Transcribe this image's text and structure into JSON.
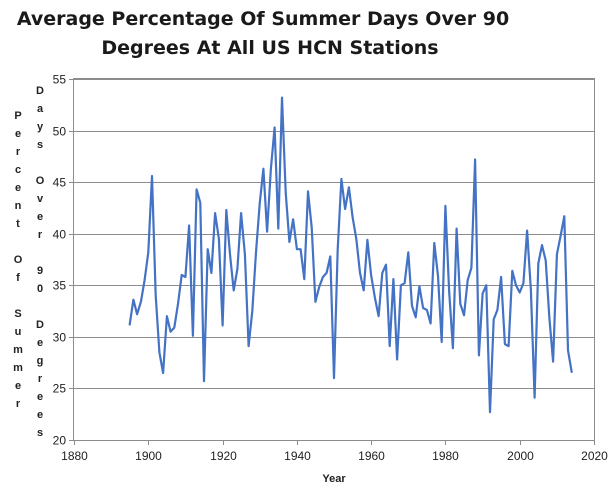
{
  "chart_data": {
    "type": "line",
    "title": [
      "Average Percentage Of Summer Days Over 90",
      "Degrees At All US HCN Stations"
    ],
    "xlabel": "Year",
    "ylabel_columns": [
      "Percent Of Summer",
      "Days Over 90 Degrees"
    ],
    "xlim": [
      1880,
      2020
    ],
    "ylim": [
      20,
      55
    ],
    "x_ticks": [
      1880,
      1900,
      1920,
      1940,
      1960,
      1980,
      2000,
      2020
    ],
    "y_ticks": [
      20,
      25,
      30,
      35,
      40,
      45,
      50,
      55
    ],
    "grid": {
      "x": false,
      "y": true
    },
    "legend": "none",
    "series": [
      {
        "color": "#4472c4",
        "x": [
          1895,
          1896,
          1897,
          1898,
          1899,
          1900,
          1901,
          1902,
          1903,
          1904,
          1905,
          1906,
          1907,
          1908,
          1909,
          1910,
          1911,
          1912,
          1913,
          1914,
          1915,
          1916,
          1917,
          1918,
          1919,
          1920,
          1921,
          1922,
          1923,
          1924,
          1925,
          1926,
          1927,
          1928,
          1929,
          1930,
          1931,
          1932,
          1933,
          1934,
          1935,
          1936,
          1937,
          1938,
          1939,
          1940,
          1941,
          1942,
          1943,
          1944,
          1945,
          1946,
          1947,
          1948,
          1949,
          1950,
          1951,
          1952,
          1953,
          1954,
          1955,
          1956,
          1957,
          1958,
          1959,
          1960,
          1961,
          1962,
          1963,
          1964,
          1965,
          1966,
          1967,
          1968,
          1969,
          1970,
          1971,
          1972,
          1973,
          1974,
          1975,
          1976,
          1977,
          1978,
          1979,
          1980,
          1981,
          1982,
          1983,
          1984,
          1985,
          1986,
          1987,
          1988,
          1989,
          1990,
          1991,
          1992,
          1993,
          1994,
          1995,
          1996,
          1997,
          1998,
          1999,
          2000,
          2001,
          2002,
          2003,
          2004,
          2005,
          2006,
          2007,
          2008,
          2009,
          2010,
          2011,
          2012,
          2013,
          2014
        ],
        "y": [
          31.2,
          33.6,
          32.2,
          33.4,
          35.5,
          38.2,
          45.6,
          34.0,
          28.5,
          26.5,
          32.0,
          30.5,
          30.9,
          33.2,
          36.0,
          35.8,
          40.8,
          30.1,
          44.3,
          43.0,
          25.7,
          38.5,
          36.2,
          42.0,
          39.5,
          31.1,
          42.3,
          38.0,
          34.5,
          36.6,
          42.0,
          38.0,
          29.1,
          32.5,
          38.2,
          42.9,
          46.3,
          40.2,
          46.3,
          50.3,
          40.5,
          53.2,
          44.0,
          39.2,
          41.4,
          38.5,
          38.5,
          35.6,
          44.1,
          40.6,
          33.4,
          34.8,
          35.8,
          36.2,
          37.8,
          26.0,
          38.5,
          45.3,
          42.4,
          44.5,
          41.6,
          39.5,
          36.2,
          34.5,
          39.4,
          36.0,
          33.8,
          32.0,
          36.2,
          37.0,
          29.1,
          35.6,
          27.8,
          35.0,
          35.2,
          38.2,
          33.0,
          31.9,
          34.9,
          32.8,
          32.6,
          31.3,
          39.1,
          35.9,
          29.5,
          42.7,
          34.5,
          28.9,
          40.5,
          33.2,
          32.1,
          35.5,
          36.7,
          47.2,
          28.2,
          34.2,
          35.0,
          22.7,
          31.7,
          32.6,
          35.8,
          29.3,
          29.1,
          36.4,
          35.0,
          34.3,
          35.2,
          40.3,
          34.5,
          24.1,
          37.1,
          38.9,
          37.4,
          31.8,
          27.6,
          38.0,
          39.8,
          41.7,
          28.7,
          26.6
        ]
      }
    ]
  }
}
